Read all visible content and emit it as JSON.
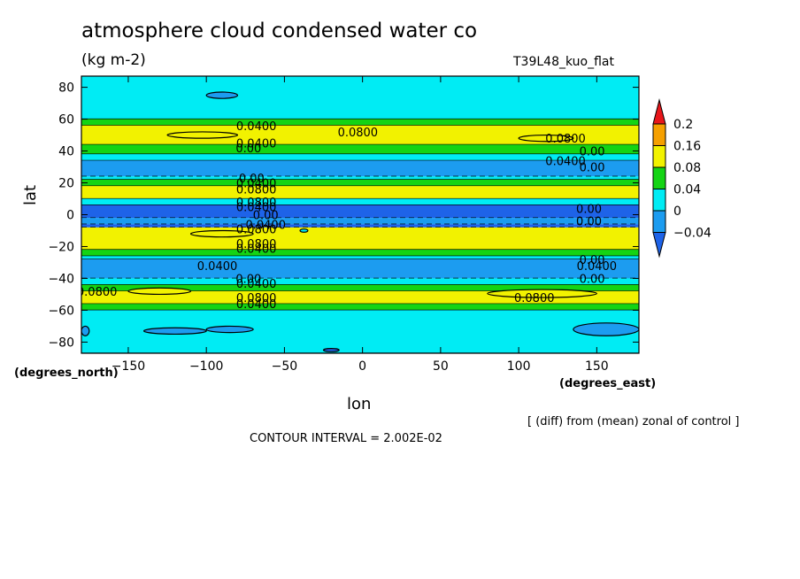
{
  "header": {
    "title": "atmosphere cloud condensed water co",
    "units": "(kg m-2)",
    "experiment": "T39L48_kuo_flat"
  },
  "footer": {
    "diff_note": "[ (diff) from (mean) zonal of control ]",
    "contour_interval": "CONTOUR INTERVAL = 2.002E-02"
  },
  "colors": {
    "lt_-0.04": "#1e63e8",
    "-0.04_0": "#1c9cf0",
    "0_0.04": "#00ecf4",
    "0.04_0.08": "#14d414",
    "0.08_0.16": "#f2f200",
    "0.16_0.2": "#f5a000",
    "gt_0.2": "#e8161a"
  },
  "chart_data": {
    "type": "contour",
    "xlabel": "lon",
    "ylabel": "lat",
    "x_units_label": "(degrees_east)",
    "y_units_label": "(degrees_north)",
    "xlim": [
      -180,
      177
    ],
    "ylim": [
      -87,
      87
    ],
    "xticks": [
      -150,
      -100,
      -50,
      0,
      50,
      100,
      150
    ],
    "yticks": [
      -80,
      -60,
      -40,
      -20,
      0,
      20,
      40,
      60,
      80
    ],
    "colorbar": {
      "levels": [
        -0.04,
        0,
        0.04,
        0.08,
        0.16,
        0.2
      ],
      "level_labels": [
        "-0.04",
        "0",
        "0.04",
        "0.08",
        "0.16",
        "0.2"
      ],
      "bins": [
        "#1e63e8",
        "#1c9cf0",
        "#00ecf4",
        "#14d414",
        "#f2f200",
        "#f5a000",
        "#e8161a"
      ]
    },
    "zonal_bands": [
      {
        "lat": [
          60,
          87
        ],
        "value": 0.02
      },
      {
        "lat": [
          56,
          60
        ],
        "value": 0.05
      },
      {
        "lat": [
          44,
          56
        ],
        "value": 0.09
      },
      {
        "lat": [
          38,
          44
        ],
        "value": 0.05
      },
      {
        "lat": [
          34,
          38
        ],
        "value": 0.02
      },
      {
        "lat": [
          24,
          34
        ],
        "value": -0.02
      },
      {
        "lat": [
          22,
          24
        ],
        "value": 0.02
      },
      {
        "lat": [
          18,
          22
        ],
        "value": 0.05
      },
      {
        "lat": [
          10,
          18
        ],
        "value": 0.1
      },
      {
        "lat": [
          6,
          10
        ],
        "value": 0.02
      },
      {
        "lat": [
          -2,
          6
        ],
        "value": -0.06
      },
      {
        "lat": [
          -6,
          -2
        ],
        "value": -0.02
      },
      {
        "lat": [
          -8,
          -6
        ],
        "value": -0.1
      },
      {
        "lat": [
          -22,
          -8
        ],
        "value": 0.1
      },
      {
        "lat": [
          -26,
          -22
        ],
        "value": 0.05
      },
      {
        "lat": [
          -28,
          -26
        ],
        "value": 0.02
      },
      {
        "lat": [
          -40,
          -28
        ],
        "value": -0.02
      },
      {
        "lat": [
          -44,
          -40
        ],
        "value": 0.02
      },
      {
        "lat": [
          -48,
          -44
        ],
        "value": 0.05
      },
      {
        "lat": [
          -56,
          -48
        ],
        "value": 0.09
      },
      {
        "lat": [
          -60,
          -56
        ],
        "value": 0.05
      },
      {
        "lat": [
          -87,
          -60
        ],
        "value": 0.02
      }
    ],
    "local_features": [
      {
        "lon": [
          -100,
          -80
        ],
        "lat": [
          73,
          77
        ],
        "value": -0.02
      },
      {
        "lon": [
          -125,
          -80
        ],
        "lat": [
          48,
          52
        ],
        "value": 0.1
      },
      {
        "lon": [
          100,
          135
        ],
        "lat": [
          46,
          50
        ],
        "value": 0.1
      },
      {
        "lon": [
          -110,
          -70
        ],
        "lat": [
          -14,
          -10
        ],
        "value": 0.11
      },
      {
        "lon": [
          -40,
          -35
        ],
        "lat": [
          -11,
          -9
        ],
        "value": 0.02
      },
      {
        "lon": [
          -150,
          -110
        ],
        "lat": [
          -50,
          -46
        ],
        "value": 0.1
      },
      {
        "lon": [
          80,
          150
        ],
        "lat": [
          -52,
          -47
        ],
        "value": 0.1
      },
      {
        "lon": [
          -140,
          -100
        ],
        "lat": [
          -75,
          -71
        ],
        "value": -0.02
      },
      {
        "lon": [
          -100,
          -70
        ],
        "lat": [
          -74,
          -70
        ],
        "value": -0.02
      },
      {
        "lon": [
          135,
          177
        ],
        "lat": [
          -76,
          -68
        ],
        "value": -0.02
      },
      {
        "lon": [
          -180,
          -175
        ],
        "lat": [
          -76,
          -70
        ],
        "value": -0.02
      },
      {
        "lon": [
          -25,
          -15
        ],
        "lat": [
          -86,
          -84
        ],
        "value": -0.05
      }
    ],
    "contour_labels": [
      {
        "text": "0.0400",
        "lon": -68,
        "lat": 56
      },
      {
        "text": "0.0800",
        "lon": -3,
        "lat": 52
      },
      {
        "text": "0.0800",
        "lon": 130,
        "lat": 48
      },
      {
        "text": "0.0400",
        "lon": -68,
        "lat": 45
      },
      {
        "text": "0.00",
        "lon": -73,
        "lat": 42
      },
      {
        "text": "0.00",
        "lon": 147,
        "lat": 40
      },
      {
        "text": "0.0400",
        "lon": 130,
        "lat": 34
      },
      {
        "text": "0.00",
        "lon": 147,
        "lat": 30
      },
      {
        "text": "0.00",
        "lon": -71,
        "lat": 23
      },
      {
        "text": "0.0400",
        "lon": -68,
        "lat": 20
      },
      {
        "text": "0.0800",
        "lon": -68,
        "lat": 16
      },
      {
        "text": "0.0800",
        "lon": -68,
        "lat": 8
      },
      {
        "text": "0.0400",
        "lon": -68,
        "lat": 5
      },
      {
        "text": "0.00",
        "lon": 145,
        "lat": 4
      },
      {
        "text": "0.00",
        "lon": -62,
        "lat": 0
      },
      {
        "text": "0.00",
        "lon": 145,
        "lat": -4
      },
      {
        "text": "0.0400",
        "lon": -62,
        "lat": -6
      },
      {
        "text": "0.0800",
        "lon": -68,
        "lat": -9
      },
      {
        "text": "0.0800",
        "lon": -68,
        "lat": -18
      },
      {
        "text": "0.0400",
        "lon": -68,
        "lat": -21
      },
      {
        "text": "0.0400",
        "lon": -93,
        "lat": -32
      },
      {
        "text": "0.00",
        "lon": 147,
        "lat": -28
      },
      {
        "text": "0.0400",
        "lon": 150,
        "lat": -32
      },
      {
        "text": "0.00",
        "lon": -73,
        "lat": -40
      },
      {
        "text": "0.00",
        "lon": 147,
        "lat": -40
      },
      {
        "text": "0.0400",
        "lon": -68,
        "lat": -43
      },
      {
        "text": "0.0800",
        "lon": -170,
        "lat": -48
      },
      {
        "text": "0.0800",
        "lon": 110,
        "lat": -52
      },
      {
        "text": "0.0800",
        "lon": -68,
        "lat": -52
      },
      {
        "text": "0.0400",
        "lon": -68,
        "lat": -56
      }
    ]
  }
}
